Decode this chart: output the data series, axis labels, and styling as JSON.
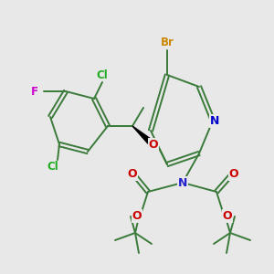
{
  "background_color": "#e8e8e8",
  "bond_color": "#3a7a3a",
  "atom_colors": {
    "Br": "#cc8800",
    "N_ring": "#0000cc",
    "N_boc": "#2222cc",
    "O": "#cc0000",
    "F": "#cc00cc",
    "Cl": "#22aa22"
  },
  "figsize": [
    3.0,
    3.0
  ],
  "dpi": 100
}
